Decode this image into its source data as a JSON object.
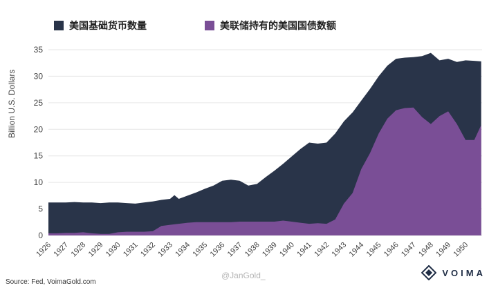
{
  "legend": [
    {
      "label": "美国基础货币数量",
      "color": "#293449"
    },
    {
      "label": "美联储持有的美国国债数额",
      "color": "#7a4e96"
    }
  ],
  "source": "Source: Fed, VoimaGold.com",
  "watermark": "@JanGold_",
  "brand": "VOIMA",
  "chart_data": {
    "type": "area",
    "ylabel": "Billion U.S. Dollars",
    "ylim": [
      0,
      35
    ],
    "yticks": [
      0,
      5,
      10,
      15,
      20,
      25,
      30,
      35
    ],
    "xlim": [
      1926,
      1950.95
    ],
    "xtick_labels": [
      "1926",
      "1927",
      "1928",
      "1929",
      "1930",
      "1931",
      "1932",
      "1933",
      "1934",
      "1935",
      "1936",
      "1937",
      "1938",
      "1939",
      "1940",
      "1941",
      "1942",
      "1943",
      "1944",
      "1945",
      "1946",
      "1947",
      "1948",
      "1949",
      "1950"
    ],
    "series": [
      {
        "name": "美国基础货币数量",
        "color": "#293449",
        "x": [
          1926,
          1926.5,
          1927,
          1927.5,
          1928,
          1928.5,
          1929,
          1929.5,
          1930,
          1930.5,
          1931,
          1931.5,
          1932,
          1932.5,
          1933,
          1933.25,
          1933.5,
          1934,
          1934.5,
          1935,
          1935.5,
          1936,
          1936.5,
          1937,
          1937.5,
          1938,
          1938.5,
          1939,
          1939.5,
          1940,
          1940.5,
          1941,
          1941.5,
          1942,
          1942.5,
          1943,
          1943.5,
          1944,
          1944.5,
          1945,
          1945.5,
          1946,
          1946.5,
          1947,
          1947.5,
          1948,
          1948.5,
          1949,
          1949.5,
          1950,
          1950.5,
          1950.9
        ],
        "values": [
          6.2,
          6.2,
          6.2,
          6.3,
          6.2,
          6.2,
          6.1,
          6.2,
          6.2,
          6.1,
          6.0,
          6.2,
          6.4,
          6.7,
          6.9,
          7.6,
          6.9,
          7.5,
          8.1,
          8.8,
          9.4,
          10.3,
          10.5,
          10.3,
          9.4,
          9.7,
          11.0,
          12.2,
          13.5,
          14.9,
          16.3,
          17.5,
          17.3,
          17.5,
          19.2,
          21.5,
          23.2,
          25.4,
          27.6,
          30.0,
          32.0,
          33.3,
          33.5,
          33.6,
          33.8,
          34.4,
          33.0,
          33.3,
          32.7,
          33.0,
          32.9,
          32.8
        ]
      },
      {
        "name": "美联储持有的美国国债数额",
        "color": "#7a4e96",
        "x": [
          1926,
          1926.5,
          1927,
          1927.5,
          1928,
          1928.5,
          1929,
          1929.5,
          1930,
          1930.5,
          1931,
          1931.5,
          1932,
          1932.5,
          1933,
          1933.5,
          1934,
          1934.5,
          1935,
          1935.5,
          1936,
          1936.5,
          1937,
          1937.5,
          1938,
          1938.5,
          1939,
          1939.5,
          1940,
          1940.5,
          1941,
          1941.5,
          1942,
          1942.5,
          1943,
          1943.5,
          1944,
          1944.5,
          1945,
          1945.5,
          1946,
          1946.5,
          1947,
          1947.5,
          1948,
          1948.5,
          1949,
          1949.5,
          1950,
          1950.5,
          1950.9
        ],
        "values": [
          0.4,
          0.4,
          0.5,
          0.5,
          0.6,
          0.4,
          0.3,
          0.3,
          0.6,
          0.7,
          0.7,
          0.7,
          0.8,
          1.8,
          2.0,
          2.2,
          2.4,
          2.5,
          2.5,
          2.5,
          2.5,
          2.5,
          2.6,
          2.6,
          2.6,
          2.6,
          2.6,
          2.8,
          2.6,
          2.4,
          2.2,
          2.3,
          2.2,
          3.0,
          6.0,
          8.0,
          12.5,
          15.5,
          19.2,
          22.0,
          23.6,
          24.0,
          24.1,
          22.3,
          21.0,
          22.5,
          23.4,
          21.0,
          18.0,
          18.0,
          20.8
        ]
      }
    ]
  }
}
